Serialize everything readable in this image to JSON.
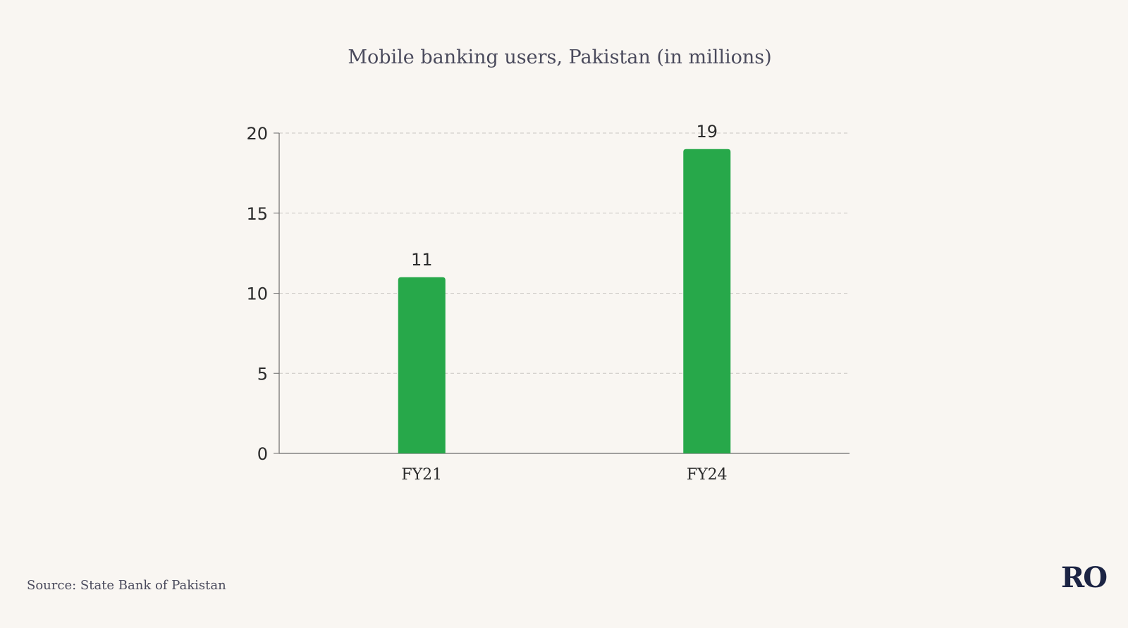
{
  "chart_data": {
    "type": "bar",
    "title": "Mobile banking users, Pakistan (in millions)",
    "categories": [
      "FY21",
      "FY24"
    ],
    "values": [
      11,
      19
    ],
    "data_labels": [
      "11",
      "19"
    ],
    "ylim": [
      0,
      20
    ],
    "yticks": [
      0,
      5,
      10,
      15,
      20
    ],
    "xlabel": "",
    "ylabel": "",
    "grid": true,
    "bar_color": "#27a84a"
  },
  "footer": {
    "source": "Source: State Bank of Pakistan",
    "logo": "RO"
  }
}
